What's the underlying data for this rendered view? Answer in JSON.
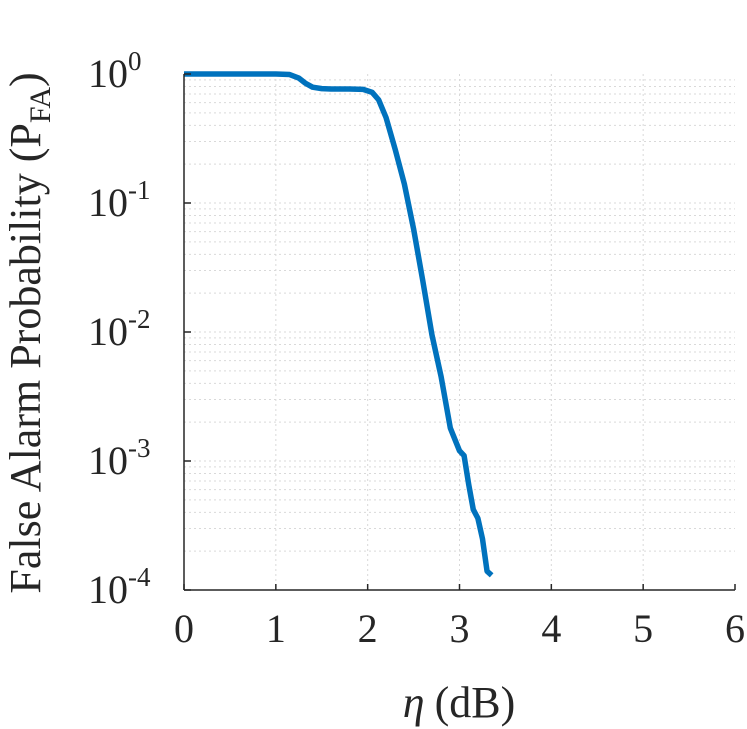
{
  "chart_data": {
    "type": "line",
    "title": "",
    "xlabel": {
      "symbol": "η",
      "unit": "(dB)"
    },
    "ylabel": {
      "main": "False Alarm Probability (P",
      "sub": "FA",
      "close": ")"
    },
    "xlim": [
      0,
      6
    ],
    "ylim": [
      0.0001,
      1
    ],
    "yscale": "log",
    "grid": true,
    "x_ticks": [
      "0",
      "1",
      "2",
      "3",
      "4",
      "5",
      "6"
    ],
    "y_ticks": [
      {
        "base": "10",
        "exp": "0"
      },
      {
        "base": "10",
        "exp": "-1"
      },
      {
        "base": "10",
        "exp": "-2"
      },
      {
        "base": "10",
        "exp": "-3"
      },
      {
        "base": "10",
        "exp": "-4"
      }
    ],
    "series": [
      {
        "color": "#0072BD",
        "x": [
          0,
          0.5,
          1.0,
          1.15,
          1.25,
          1.32,
          1.4,
          1.5,
          1.6,
          1.8,
          1.95,
          2.05,
          2.12,
          2.2,
          2.3,
          2.4,
          2.5,
          2.6,
          2.7,
          2.8,
          2.9,
          3.0,
          3.05,
          3.1,
          3.15,
          3.2,
          3.25,
          3.3,
          3.35
        ],
        "y": [
          1.0,
          1.0,
          1.0,
          0.99,
          0.93,
          0.85,
          0.79,
          0.77,
          0.765,
          0.765,
          0.76,
          0.72,
          0.63,
          0.46,
          0.26,
          0.14,
          0.063,
          0.025,
          0.0095,
          0.0045,
          0.0018,
          0.0012,
          0.0011,
          0.00066,
          0.00042,
          0.00036,
          0.00025,
          0.00014,
          0.00013
        ]
      }
    ]
  },
  "colors": {
    "line": "#0072BD",
    "grid": "#d9d9d9",
    "axis": "#262626"
  }
}
